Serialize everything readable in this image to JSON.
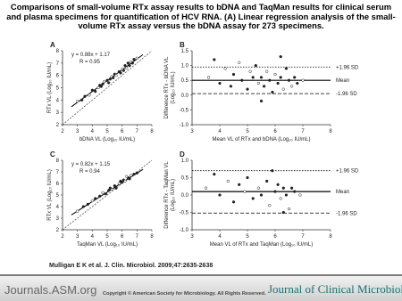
{
  "header": {
    "title": "Comparisons of small-volume RTx assay results to bDNA and TaqMan results for clinical serum and plasma specimens for quantification of HCV RNA. (A) Linear regression analysis of the small-volume RTx assay versus the bDNA assay for 273 specimens."
  },
  "chart_data": [
    {
      "type": "scatter",
      "panel": "A",
      "xlabel": "bDNA VL (Log₁₀ IU/mL)",
      "ylabel": [
        "RTx VL (Log₁₀ IU/mL)"
      ],
      "annotations": [
        "y = 0.88x + 1.17",
        "R = 0.95"
      ],
      "regression": {
        "slope": 0.88,
        "intercept": 1.17
      },
      "identity_line": true,
      "xlim": [
        2,
        8
      ],
      "ylim": [
        2,
        8
      ],
      "xticks": [
        2,
        3,
        4,
        5,
        6,
        7,
        8
      ],
      "yticks": [
        2,
        3,
        4,
        5,
        6,
        7,
        8
      ],
      "color": "#222222",
      "x": [
        3.0,
        3.3,
        3.5,
        3.8,
        4.0,
        4.2,
        4.4,
        4.5,
        4.7,
        4.8,
        5.0,
        5.1,
        5.3,
        5.4,
        5.5,
        5.6,
        5.8,
        5.9,
        6.0,
        6.1,
        6.2,
        6.3,
        6.4,
        6.5,
        6.6,
        6.7,
        6.8,
        7.0,
        5.2,
        4.6
      ],
      "y": [
        3.9,
        4.0,
        4.3,
        4.4,
        4.8,
        4.7,
        5.0,
        5.2,
        5.3,
        5.5,
        5.6,
        5.4,
        5.9,
        5.8,
        6.1,
        6.0,
        6.3,
        6.2,
        6.5,
        6.4,
        6.8,
        6.6,
        7.0,
        6.8,
        7.1,
        7.0,
        7.3,
        7.4,
        5.7,
        5.1
      ]
    },
    {
      "type": "scatter",
      "panel": "B",
      "xlabel": "Mean VL of RTx and bDNA (Log₁₀ IU/mL)",
      "ylabel": [
        "Difference RTx - bDNA VL",
        "(Log₁₀ IU/mL)"
      ],
      "reference_lines": [
        {
          "label": "+1.96 SD",
          "value": 0.95,
          "style": "dotted"
        },
        {
          "label": "Mean",
          "value": 0.5,
          "style": "solid"
        },
        {
          "label": "-1.96 SD",
          "value": 0.05,
          "style": "dashed"
        }
      ],
      "xlim": [
        3,
        8
      ],
      "ylim": [
        -1,
        1.5
      ],
      "xticks": [
        3,
        4,
        5,
        6,
        7,
        8
      ],
      "yticks": [
        {
          "value": -1,
          "label": "-1.0"
        },
        -0.5,
        {
          "value": 0,
          "label": "0.0"
        },
        0.5,
        {
          "value": 1,
          "label": "1.0"
        },
        1.5
      ],
      "color": "#222222",
      "x": [
        3.6,
        3.8,
        4.0,
        4.2,
        4.4,
        4.5,
        4.7,
        4.8,
        5.0,
        5.1,
        5.2,
        5.3,
        5.4,
        5.5,
        5.6,
        5.7,
        5.8,
        5.9,
        6.0,
        6.1,
        6.2,
        6.3,
        6.4,
        6.5,
        6.6,
        6.7,
        6.8,
        7.0,
        5.5,
        6.2
      ],
      "y": [
        0.6,
        1.2,
        0.4,
        0.9,
        0.3,
        0.7,
        1.1,
        0.5,
        0.2,
        0.8,
        0.6,
        1.0,
        0.4,
        0.6,
        0.3,
        0.8,
        0.5,
        0.1,
        0.7,
        0.4,
        0.6,
        0.2,
        0.9,
        0.5,
        0.3,
        0.6,
        0.4,
        0.5,
        -0.2,
        1.3
      ]
    },
    {
      "type": "scatter",
      "panel": "C",
      "xlabel": "TaqMan VL (Log₁₀ IU/mL)",
      "ylabel": [
        "RTx VL (Log₁₀ IU/mL)"
      ],
      "annotations": [
        "y = 0.82x + 1.15",
        "R = 0.94"
      ],
      "regression": {
        "slope": 0.82,
        "intercept": 1.15
      },
      "identity_line": true,
      "xlim": [
        2,
        8
      ],
      "ylim": [
        2,
        8
      ],
      "xticks": [
        2,
        3,
        4,
        5,
        6,
        7,
        8
      ],
      "yticks": [
        2,
        3,
        4,
        5,
        6,
        7,
        8
      ],
      "color": "#222222",
      "x": [
        3.0,
        3.4,
        3.7,
        4.0,
        4.2,
        4.5,
        4.7,
        4.9,
        5.1,
        5.3,
        5.5,
        5.6,
        5.8,
        6.0,
        6.1,
        6.2,
        6.4,
        6.5,
        6.6,
        6.8,
        7.0,
        6.3,
        5.9,
        5.2
      ],
      "y": [
        3.6,
        4.0,
        4.2,
        4.5,
        4.7,
        4.9,
        5.2,
        5.1,
        5.4,
        5.5,
        5.8,
        5.6,
        6.0,
        6.1,
        6.3,
        6.2,
        6.5,
        6.4,
        6.7,
        6.8,
        6.9,
        6.6,
        6.2,
        5.6
      ]
    },
    {
      "type": "scatter",
      "panel": "D",
      "xlabel": "Mean VL of RTx and TaqMan (Log₁₀ IU/mL)",
      "ylabel": [
        "Difference RTx - TaqMan VL",
        "(Log₁₀ IU/mL)"
      ],
      "reference_lines": [
        {
          "label": "+1.96 SD",
          "value": 0.7,
          "style": "dotted"
        },
        {
          "label": "Mean",
          "value": 0.1,
          "style": "solid"
        },
        {
          "label": "-1.96 SD",
          "value": -0.52,
          "style": "dashed"
        }
      ],
      "xlim": [
        3,
        8
      ],
      "ylim": [
        -1,
        1
      ],
      "xticks": [
        3,
        4,
        5,
        6,
        7,
        8
      ],
      "yticks": [
        {
          "value": -1,
          "label": "-1.0"
        },
        -0.5,
        {
          "value": 0,
          "label": "0.0"
        },
        0.5,
        {
          "value": 1,
          "label": "1.0"
        }
      ],
      "color": "#222222",
      "x": [
        3.5,
        3.8,
        4.0,
        4.3,
        4.5,
        4.7,
        4.9,
        5.0,
        5.2,
        5.4,
        5.5,
        5.7,
        5.8,
        6.0,
        6.1,
        6.2,
        6.3,
        6.4,
        6.5,
        6.6,
        6.7,
        6.9,
        5.9,
        6.3
      ],
      "y": [
        0.2,
        0.6,
        0.0,
        0.4,
        -0.2,
        0.3,
        0.1,
        0.5,
        -0.1,
        0.2,
        0.0,
        0.4,
        -0.3,
        0.1,
        0.3,
        -0.1,
        0.2,
        0.0,
        -0.4,
        0.2,
        0.1,
        0.0,
        0.7,
        -0.5
      ]
    }
  ],
  "citation": "Mulligan E K et al. J. Clin. Microbiol. 2009;47:2635-2638",
  "footer": {
    "site": "Journals.ASM.org",
    "copyright": "Copyright © American Society for Microbiology. All Rights Reserved.",
    "journal": "Journal of Clinical Microbiology"
  }
}
